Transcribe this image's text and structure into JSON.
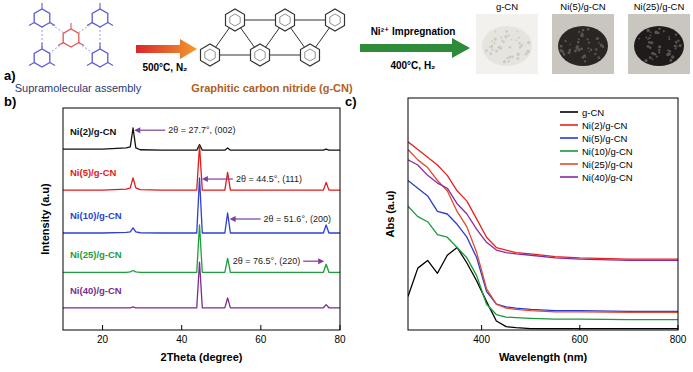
{
  "panel_a": {
    "label": "a)",
    "precursor": "Supramolecular assembly",
    "step_1": "500°C, N₂",
    "product": "Graphitic carbon nitride (g-CN)",
    "step_2": [
      "Ni²⁺ Impregnation",
      "400°C, H₂"
    ],
    "photos": [
      {
        "label": "g-CN",
        "color": "#e6e4df"
      },
      {
        "label": "Ni(5)/g-CN",
        "color": "#2a2624"
      },
      {
        "label": "Ni(25)/g-CN",
        "color": "#1e1b1a"
      }
    ]
  },
  "chart_data": [
    {
      "type": "line",
      "title": "b)",
      "x_label": "2Theta (degree)",
      "y_label": "Intensity (a.u)",
      "x": [
        10,
        20,
        26,
        27,
        27.7,
        28.4,
        29.5,
        35,
        43.8,
        44.5,
        45.2,
        50.9,
        51.6,
        52.3,
        60,
        75.8,
        76.5,
        77.2,
        80
      ],
      "series": [
        {
          "name": "Ni(2)/g-CN",
          "color": "#111111",
          "values": [
            8.15,
            8.15,
            8.2,
            8.25,
            9.1,
            8.2,
            8.12,
            8.1,
            8.1,
            8.35,
            8.1,
            8.1,
            8.2,
            8.1,
            8.1,
            8.1,
            8.15,
            8.1,
            8.1
          ]
        },
        {
          "name": "Ni(5)/g-CN",
          "color": "#e31a1c",
          "values": [
            6.3,
            6.3,
            6.35,
            6.4,
            6.85,
            6.4,
            6.32,
            6.3,
            6.3,
            8.3,
            6.3,
            6.3,
            7.1,
            6.3,
            6.3,
            6.3,
            6.65,
            6.3,
            6.3
          ]
        },
        {
          "name": "Ni(10)/g-CN",
          "color": "#2d3fd3",
          "values": [
            4.37,
            4.37,
            4.4,
            4.42,
            4.6,
            4.42,
            4.38,
            4.37,
            4.37,
            6.85,
            4.37,
            4.37,
            5.27,
            4.37,
            4.37,
            4.37,
            4.73,
            4.37,
            4.37
          ]
        },
        {
          "name": "Ni(25)/g-CN",
          "color": "#1b9e3b",
          "values": [
            2.6,
            2.6,
            2.6,
            2.62,
            2.68,
            2.62,
            2.6,
            2.6,
            2.6,
            4.73,
            2.6,
            2.6,
            3.23,
            2.6,
            2.6,
            2.6,
            2.96,
            2.6,
            2.6
          ]
        },
        {
          "name": "Ni(40)/g-CN",
          "color": "#7b2d8e",
          "values": [
            1.0,
            1.0,
            1.0,
            1.0,
            1.04,
            1.0,
            1.0,
            1.0,
            1.0,
            3.06,
            1.0,
            1.0,
            1.45,
            1.0,
            1.0,
            1.0,
            1.14,
            1.0,
            1.0
          ]
        }
      ],
      "xlim": [
        10,
        80
      ],
      "xticks": [
        20,
        40,
        60,
        80
      ],
      "ylim": [
        0,
        10
      ],
      "tick_labels": "x",
      "annotations": [
        {
          "text": "2θ = 27.7°, (002)",
          "x": 28.0,
          "y": 9.0
        },
        {
          "text": "2θ = 44.5°, (111)",
          "x": 45.1,
          "y": 6.8
        },
        {
          "text": "2θ = 51.6°, (200)",
          "x": 52.1,
          "y": 5.0
        },
        {
          "text": "2θ = 76.5°, (220)",
          "x": 76.0,
          "y": 3.1
        }
      ]
    },
    {
      "type": "line",
      "title": "c)",
      "x_label": "Wavelength (nm)",
      "y_label": "Abs (a.u)",
      "x": [
        250,
        270,
        290,
        310,
        330,
        350,
        370,
        390,
        410,
        430,
        450,
        470,
        500,
        550,
        600,
        700,
        800
      ],
      "series": [
        {
          "name": "g-CN",
          "color": "#000000",
          "values": [
            1.3,
            2.4,
            2.7,
            2.2,
            2.9,
            3.2,
            2.6,
            1.9,
            1.1,
            0.35,
            0.13,
            0.09,
            0.05,
            0.05,
            0.05,
            0.05,
            0.05
          ]
        },
        {
          "name": "Ni(2)/g-CN",
          "color": "#e8231f",
          "values": [
            7.3,
            7.0,
            6.7,
            6.4,
            6.0,
            5.4,
            5.0,
            4.3,
            3.6,
            3.2,
            3.1,
            3.0,
            2.95,
            2.85,
            2.8,
            2.75,
            2.75
          ]
        },
        {
          "name": "Ni(5)/g-CN",
          "color": "#2b3bd0",
          "values": [
            5.8,
            5.5,
            5.2,
            4.6,
            4.5,
            4.1,
            3.6,
            2.8,
            1.5,
            1.0,
            0.9,
            0.85,
            0.8,
            0.75,
            0.75,
            0.72,
            0.72
          ]
        },
        {
          "name": "Ni(10)/g-CN",
          "color": "#1a9a3a",
          "values": [
            4.8,
            4.4,
            4.2,
            3.7,
            3.6,
            3.2,
            2.8,
            2.1,
            1.0,
            0.6,
            0.5,
            0.48,
            0.45,
            0.42,
            0.42,
            0.4,
            0.4
          ]
        },
        {
          "name": "Ni(25)/g-CN",
          "color": "#e24a2e",
          "values": [
            7.0,
            6.6,
            6.3,
            5.8,
            5.4,
            4.6,
            4.0,
            3.0,
            1.6,
            1.0,
            0.85,
            0.8,
            0.75,
            0.7,
            0.7,
            0.68,
            0.68
          ]
        },
        {
          "name": "Ni(40)/g-CN",
          "color": "#8a2b9a",
          "values": [
            6.6,
            6.4,
            6.0,
            5.7,
            5.5,
            4.9,
            4.5,
            3.9,
            3.4,
            3.1,
            3.0,
            2.95,
            2.9,
            2.8,
            2.75,
            2.7,
            2.7
          ]
        }
      ],
      "xlim": [
        250,
        800
      ],
      "xticks": [
        400,
        600,
        800
      ],
      "ylim": [
        0,
        9
      ],
      "tick_labels": "x",
      "legend": "upper right"
    }
  ]
}
